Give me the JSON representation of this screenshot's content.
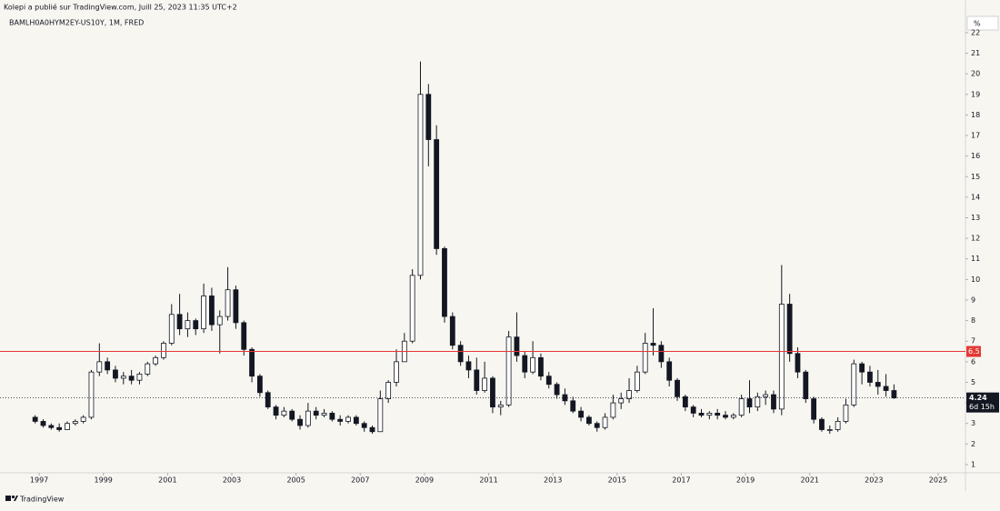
{
  "header": {
    "published": "Kolepi a publié sur TradingView.com, Juill 25, 2023 11:35 UTC+2",
    "brand": "TradingView"
  },
  "chart_data": {
    "type": "candlestick",
    "title": "BAMLH0A0HYM2EY-US10Y, 1M, FRED",
    "unit": "%",
    "x": [
      1996.875,
      1997.125,
      1997.375,
      1997.625,
      1997.875,
      1998.125,
      1998.375,
      1998.625,
      1998.875,
      1999.125,
      1999.375,
      1999.625,
      1999.875,
      2000.125,
      2000.375,
      2000.625,
      2000.875,
      2001.125,
      2001.375,
      2001.625,
      2001.875,
      2002.125,
      2002.375,
      2002.625,
      2002.875,
      2003.125,
      2003.375,
      2003.625,
      2003.875,
      2004.125,
      2004.375,
      2004.625,
      2004.875,
      2005.125,
      2005.375,
      2005.625,
      2005.875,
      2006.125,
      2006.375,
      2006.625,
      2006.875,
      2007.125,
      2007.375,
      2007.625,
      2007.875,
      2008.125,
      2008.375,
      2008.625,
      2008.875,
      2009.125,
      2009.375,
      2009.625,
      2009.875,
      2010.125,
      2010.375,
      2010.625,
      2010.875,
      2011.125,
      2011.375,
      2011.625,
      2011.875,
      2012.125,
      2012.375,
      2012.625,
      2012.875,
      2013.125,
      2013.375,
      2013.625,
      2013.875,
      2014.125,
      2014.375,
      2014.625,
      2014.875,
      2015.125,
      2015.375,
      2015.625,
      2015.875,
      2016.125,
      2016.375,
      2016.625,
      2016.875,
      2017.125,
      2017.375,
      2017.625,
      2017.875,
      2018.125,
      2018.375,
      2018.625,
      2018.875,
      2019.125,
      2019.375,
      2019.625,
      2019.875,
      2020.125,
      2020.375,
      2020.625,
      2020.875,
      2021.125,
      2021.375,
      2021.625,
      2021.875,
      2022.125,
      2022.375,
      2022.625,
      2022.875,
      2023.125,
      2023.375,
      2023.625
    ],
    "open": [
      3.3,
      3.1,
      2.9,
      2.8,
      2.7,
      3.0,
      3.1,
      3.3,
      5.5,
      6.0,
      5.6,
      5.2,
      5.3,
      5.1,
      5.4,
      5.9,
      6.2,
      6.9,
      8.3,
      7.6,
      8.0,
      7.6,
      9.2,
      7.8,
      8.2,
      9.5,
      7.9,
      6.6,
      5.3,
      4.5,
      3.8,
      3.4,
      3.6,
      3.2,
      2.9,
      3.6,
      3.4,
      3.5,
      3.2,
      3.1,
      3.3,
      3.0,
      2.8,
      2.6,
      4.2,
      5.0,
      6.0,
      7.0,
      10.2,
      19.0,
      16.8,
      11.5,
      8.2,
      6.8,
      6.0,
      5.6,
      4.6,
      5.2,
      3.8,
      3.9,
      7.2,
      6.3,
      5.5,
      6.2,
      5.3,
      4.9,
      4.4,
      4.1,
      3.6,
      3.3,
      3.0,
      2.8,
      3.3,
      4.0,
      4.2,
      4.6,
      5.5,
      6.9,
      6.8,
      6.0,
      5.1,
      4.3,
      3.8,
      3.5,
      3.4,
      3.5,
      3.4,
      3.3,
      3.4,
      4.2,
      3.8,
      4.3,
      4.4,
      3.7,
      8.8,
      6.4,
      5.5,
      4.2,
      3.2,
      2.7,
      2.7,
      3.1,
      3.9,
      5.9,
      5.5,
      5.0,
      4.8,
      4.6
    ],
    "high": [
      3.4,
      3.2,
      3.0,
      3.0,
      3.1,
      3.2,
      3.4,
      5.6,
      6.9,
      6.2,
      5.8,
      5.5,
      5.6,
      5.5,
      6.0,
      6.3,
      7.0,
      8.8,
      9.3,
      8.4,
      8.1,
      9.8,
      9.6,
      8.5,
      10.6,
      9.7,
      8.0,
      6.7,
      5.4,
      4.6,
      3.9,
      3.8,
      3.7,
      3.4,
      4.0,
      3.8,
      3.7,
      3.6,
      3.4,
      3.4,
      3.4,
      3.1,
      2.9,
      4.6,
      5.1,
      6.6,
      7.4,
      10.5,
      20.6,
      19.5,
      17.5,
      11.6,
      8.4,
      7.0,
      6.3,
      6.2,
      6.0,
      5.3,
      4.1,
      7.5,
      8.4,
      6.5,
      7.0,
      6.4,
      5.5,
      5.0,
      4.7,
      4.3,
      3.8,
      3.4,
      3.1,
      3.5,
      4.4,
      4.5,
      5.2,
      5.8,
      7.4,
      8.6,
      7.0,
      6.2,
      5.2,
      4.4,
      3.9,
      3.7,
      3.6,
      3.7,
      3.6,
      3.5,
      4.4,
      5.1,
      4.5,
      4.6,
      4.6,
      10.7,
      9.3,
      6.7,
      5.6,
      4.3,
      3.3,
      2.9,
      3.3,
      4.2,
      6.1,
      6.0,
      5.8,
      5.6,
      5.4,
      4.9
    ],
    "low": [
      3.0,
      2.8,
      2.7,
      2.6,
      2.7,
      2.9,
      3.0,
      3.2,
      5.3,
      5.4,
      5.0,
      4.9,
      4.9,
      4.9,
      5.3,
      5.8,
      6.1,
      6.8,
      7.3,
      7.2,
      7.3,
      7.4,
      7.5,
      6.4,
      8.0,
      7.6,
      6.3,
      5.0,
      4.3,
      3.7,
      3.2,
      3.3,
      3.1,
      2.7,
      2.8,
      3.2,
      3.3,
      3.1,
      2.9,
      3.0,
      2.9,
      2.6,
      2.5,
      2.6,
      4.0,
      4.8,
      6.0,
      6.9,
      10.0,
      15.5,
      11.2,
      7.9,
      6.6,
      5.8,
      5.2,
      4.4,
      4.5,
      3.5,
      3.4,
      3.8,
      6.0,
      5.2,
      5.4,
      5.1,
      4.7,
      4.2,
      3.9,
      3.5,
      3.1,
      2.9,
      2.6,
      2.7,
      3.2,
      3.7,
      4.0,
      4.5,
      5.4,
      6.3,
      5.7,
      4.8,
      4.1,
      3.6,
      3.3,
      3.3,
      3.2,
      3.2,
      3.2,
      3.2,
      3.3,
      3.5,
      3.6,
      3.9,
      3.5,
      3.4,
      6.0,
      5.2,
      4.0,
      3.0,
      2.6,
      2.5,
      2.6,
      3.0,
      3.8,
      4.9,
      4.8,
      4.4,
      4.3,
      4.2
    ],
    "close": [
      3.1,
      2.9,
      2.8,
      2.7,
      3.0,
      3.1,
      3.3,
      5.5,
      6.0,
      5.6,
      5.2,
      5.3,
      5.1,
      5.4,
      5.9,
      6.2,
      6.9,
      8.3,
      7.6,
      8.0,
      7.6,
      9.2,
      7.8,
      8.2,
      9.5,
      7.9,
      6.6,
      5.3,
      4.5,
      3.8,
      3.4,
      3.6,
      3.2,
      2.9,
      3.6,
      3.4,
      3.5,
      3.2,
      3.1,
      3.3,
      3.0,
      2.8,
      2.6,
      4.2,
      5.0,
      6.0,
      7.0,
      10.2,
      19.0,
      16.8,
      11.5,
      8.2,
      6.8,
      6.0,
      5.6,
      4.6,
      5.2,
      3.8,
      3.9,
      7.2,
      6.3,
      5.5,
      6.2,
      5.3,
      4.9,
      4.4,
      4.1,
      3.6,
      3.3,
      3.0,
      2.8,
      3.3,
      4.0,
      4.2,
      4.6,
      5.5,
      6.9,
      6.8,
      6.0,
      5.1,
      4.3,
      3.8,
      3.5,
      3.4,
      3.5,
      3.4,
      3.3,
      3.4,
      4.2,
      3.8,
      4.3,
      4.4,
      3.7,
      8.8,
      6.4,
      5.5,
      4.2,
      3.2,
      2.7,
      2.7,
      3.1,
      3.9,
      5.9,
      5.5,
      5.0,
      4.8,
      4.6,
      4.24
    ],
    "up_color": "#ffffff",
    "down_color": "#131722",
    "xlim": [
      1995.78,
      2025.85
    ],
    "xticks": [
      1997,
      1999,
      2001,
      2003,
      2005,
      2007,
      2009,
      2011,
      2013,
      2015,
      2017,
      2019,
      2021,
      2023,
      2025
    ],
    "ylim": [
      0.6,
      22.35
    ],
    "yticks": [
      1,
      2,
      3,
      4,
      5,
      6,
      7,
      8,
      9,
      10,
      11,
      12,
      13,
      14,
      15,
      16,
      17,
      18,
      19,
      20,
      21,
      22
    ],
    "hline": {
      "value": 6.5,
      "color": "#e53935"
    },
    "countdown": "6d 15h"
  }
}
